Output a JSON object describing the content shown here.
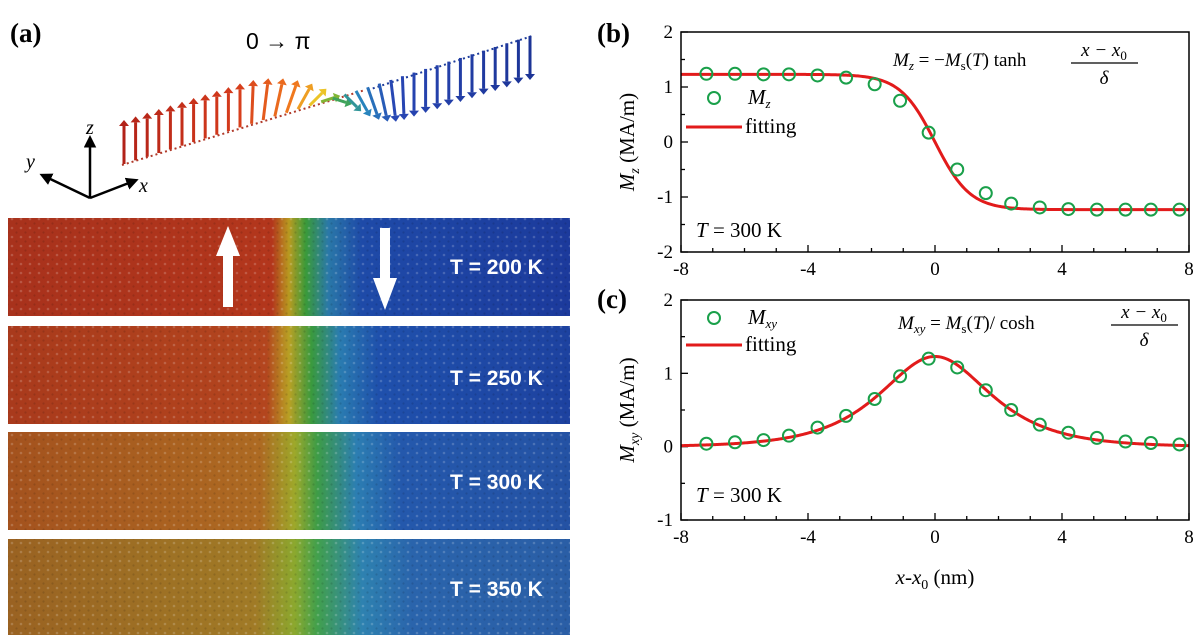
{
  "panel_a": {
    "label": "(a)",
    "title": "0 → π",
    "axes3d": {
      "x": "x",
      "y": "y",
      "z": "z"
    },
    "strips": [
      {
        "label": "T = 200 K",
        "T": 200
      },
      {
        "label": "T = 250 K",
        "T": 250
      },
      {
        "label": "T = 300 K",
        "T": 300
      },
      {
        "label": "T = 350 K",
        "T": 350
      }
    ],
    "colors": {
      "up": "#b22a16",
      "down": "#1e3c9c",
      "wall_green": "#3a9a2a"
    }
  },
  "chart_data": [
    {
      "type": "scatter",
      "panel_label": "(b)",
      "xlabel": "x-x0 (nm)",
      "ylabel": "Mz (MA/m)",
      "xlim": [
        -8,
        8
      ],
      "ylim": [
        -2,
        2
      ],
      "xticks": [
        "-8",
        "-4",
        "0",
        "4",
        "8"
      ],
      "yticks": [
        "2",
        "1",
        "0",
        "-1",
        "-2"
      ],
      "equation": "Mz = −Ms(T) tanh (x − x0)/δ",
      "annotation": "T = 300 K",
      "legend_position": "upper-left",
      "series": [
        {
          "name": "Mz",
          "kind": "markers",
          "color": "#1aa04a",
          "x": [
            -7.2,
            -6.3,
            -5.4,
            -4.6,
            -3.7,
            -2.8,
            -1.9,
            -1.1,
            -0.2,
            0.7,
            1.6,
            2.4,
            3.3,
            4.2,
            5.1,
            6.0,
            6.8,
            7.7
          ],
          "y": [
            1.24,
            1.24,
            1.23,
            1.23,
            1.21,
            1.17,
            1.05,
            0.75,
            0.17,
            -0.5,
            -0.93,
            -1.12,
            -1.19,
            -1.22,
            -1.23,
            -1.23,
            -1.23,
            -1.23
          ]
        },
        {
          "name": "fitting",
          "kind": "line",
          "color": "#e21b1b",
          "function": "tanh",
          "Ms": 1.23,
          "x0": 0,
          "delta": 1.1
        }
      ]
    },
    {
      "type": "scatter",
      "panel_label": "(c)",
      "xlabel": "x-x0 (nm)",
      "ylabel": "Mxy (MA/m)",
      "xlim": [
        -8,
        8
      ],
      "ylim": [
        -1,
        2
      ],
      "xticks": [
        "-8",
        "-4",
        "0",
        "4",
        "8"
      ],
      "yticks": [
        "2",
        "1",
        "0",
        "-1"
      ],
      "equation": "Mxy = Ms(T) / cosh (x − x0)/δ",
      "annotation": "T = 300 K",
      "legend_position": "upper-left",
      "series": [
        {
          "name": "Mxy",
          "kind": "markers",
          "color": "#1aa04a",
          "x": [
            -7.2,
            -6.3,
            -5.4,
            -4.6,
            -3.7,
            -2.8,
            -1.9,
            -1.1,
            -0.2,
            0.7,
            1.6,
            2.4,
            3.3,
            4.2,
            5.1,
            6.0,
            6.8,
            7.7
          ],
          "y": [
            0.04,
            0.06,
            0.09,
            0.15,
            0.26,
            0.42,
            0.65,
            0.96,
            1.2,
            1.08,
            0.77,
            0.5,
            0.3,
            0.19,
            0.12,
            0.07,
            0.05,
            0.03
          ]
        },
        {
          "name": "fitting",
          "kind": "line",
          "color": "#e21b1b",
          "function": "sech",
          "Ms": 1.23,
          "x0": 0,
          "delta": 1.55
        }
      ]
    }
  ]
}
